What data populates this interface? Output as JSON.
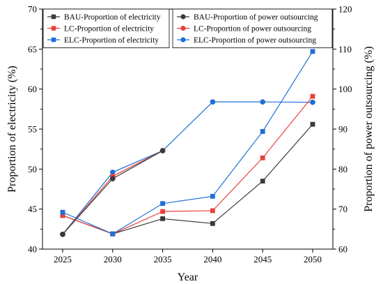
{
  "chart_data": {
    "type": "line",
    "x": [
      2025,
      2030,
      2035,
      2040,
      2045,
      2050
    ],
    "xlabel": "Year",
    "ylabel_left": "Proportion of electricity (%)",
    "ylabel_right": "Proportion of power outsourcing (%)",
    "ylim_left": [
      40,
      70
    ],
    "ylim_right": [
      60,
      120
    ],
    "yticks_left": [
      40,
      45,
      50,
      55,
      60,
      65,
      70
    ],
    "yticks_right": [
      60,
      70,
      80,
      90,
      100,
      110,
      120
    ],
    "grid": false,
    "series": [
      {
        "name": "BAU-Proportion of electricity",
        "axis": "left",
        "marker": "square",
        "color": "#3a3a3a",
        "values": [
          44.2,
          41.9,
          43.8,
          43.2,
          48.5,
          55.6
        ]
      },
      {
        "name": "LC-Proportion of electricity",
        "axis": "left",
        "marker": "square",
        "color": "#e8413c",
        "values": [
          44.2,
          41.9,
          44.7,
          44.8,
          51.4,
          59.1
        ]
      },
      {
        "name": "ELC-Proportion of electricity",
        "axis": "left",
        "marker": "square",
        "color": "#1f6fd6",
        "values": [
          44.6,
          41.9,
          45.7,
          46.6,
          54.7,
          64.7
        ]
      },
      {
        "name": "BAU-Proportion of power outsourcing",
        "axis": "right",
        "marker": "circle",
        "color": "#3a3a3a",
        "values": [
          63.7,
          77.6,
          84.6,
          null,
          null,
          null
        ]
      },
      {
        "name": "LC-Proportion of power outsourcing",
        "axis": "right",
        "marker": "circle",
        "color": "#e8413c",
        "values": [
          63.7,
          78.2,
          84.6,
          null,
          null,
          null
        ]
      },
      {
        "name": "ELC-Proportion of power outsourcing",
        "axis": "right",
        "marker": "circle",
        "color": "#1f6fd6",
        "values": [
          63.7,
          79.2,
          84.6,
          96.8,
          96.8,
          96.7
        ]
      }
    ],
    "legends": [
      {
        "placement": "top-left",
        "series": [
          0,
          1,
          2
        ]
      },
      {
        "placement": "top-right",
        "series": [
          3,
          4,
          5
        ]
      }
    ]
  }
}
